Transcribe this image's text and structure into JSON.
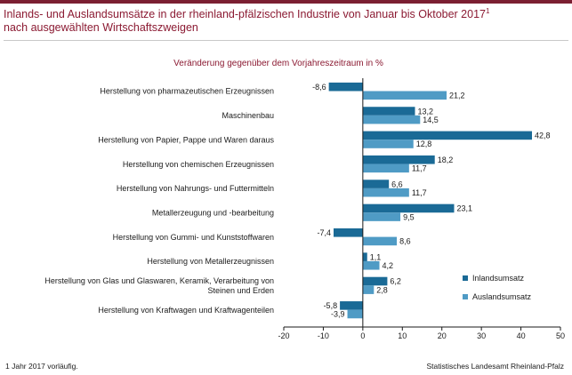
{
  "title_line1": "Inlands- und Auslandsumsätze in der rheinland-pfälzischen Industrie von Januar bis Oktober 2017",
  "title_sup": "1",
  "title_line2": "nach ausgewählten Wirtschaftszweigen",
  "footnote": "1 Jahr 2017 vorläufig.",
  "source": "Statistisches Landesamt Rheinland-Pfalz",
  "chart_data": {
    "type": "bar",
    "orientation": "horizontal",
    "subtitle": "Veränderung gegenüber dem Vorjahreszeitraum in %",
    "categories": [
      [
        "Herstellung von pharmazeutischen Erzeugnissen"
      ],
      [
        "Maschinenbau"
      ],
      [
        "Herstellung von Papier, Pappe und Waren daraus"
      ],
      [
        "Herstellung von chemischen Erzeugnissen"
      ],
      [
        "Herstellung von Nahrungs- und Futtermitteln"
      ],
      [
        "Metallerzeugung und -bearbeitung"
      ],
      [
        "Herstellung von Gummi- und Kunststoffwaren"
      ],
      [
        "Herstellung von Metallerzeugnissen"
      ],
      [
        "Herstellung von Glas und Glaswaren, Keramik, Verarbeitung von",
        "Steinen und Erden"
      ],
      [
        "Herstellung von Kraftwagen und Kraftwagenteilen"
      ]
    ],
    "series": [
      {
        "name": "Inlandsumsatz",
        "color": "#1a6a96",
        "values": [
          -8.6,
          13.2,
          42.8,
          18.2,
          6.6,
          23.1,
          -7.4,
          1.1,
          6.2,
          -5.8
        ]
      },
      {
        "name": "Auslandsumsatz",
        "color": "#4f9bc5",
        "values": [
          21.2,
          14.5,
          12.8,
          11.7,
          11.7,
          9.5,
          8.6,
          4.2,
          2.8,
          -3.9
        ]
      }
    ],
    "value_labels": [
      [
        "-8,6",
        "13,2",
        "42,8",
        "18,2",
        "6,6",
        "23,1",
        "-7,4",
        "1,1",
        "6,2",
        "-5,8"
      ],
      [
        "21,2",
        "14,5",
        "12,8",
        "11,7",
        "11,7",
        "9,5",
        "8,6",
        "4,2",
        "2,8",
        "-3,9"
      ]
    ],
    "xlim": [
      -20,
      50
    ],
    "xticks": [
      -20,
      -10,
      0,
      10,
      20,
      30,
      40,
      50
    ],
    "legend": "bottom-right",
    "grid": false
  }
}
